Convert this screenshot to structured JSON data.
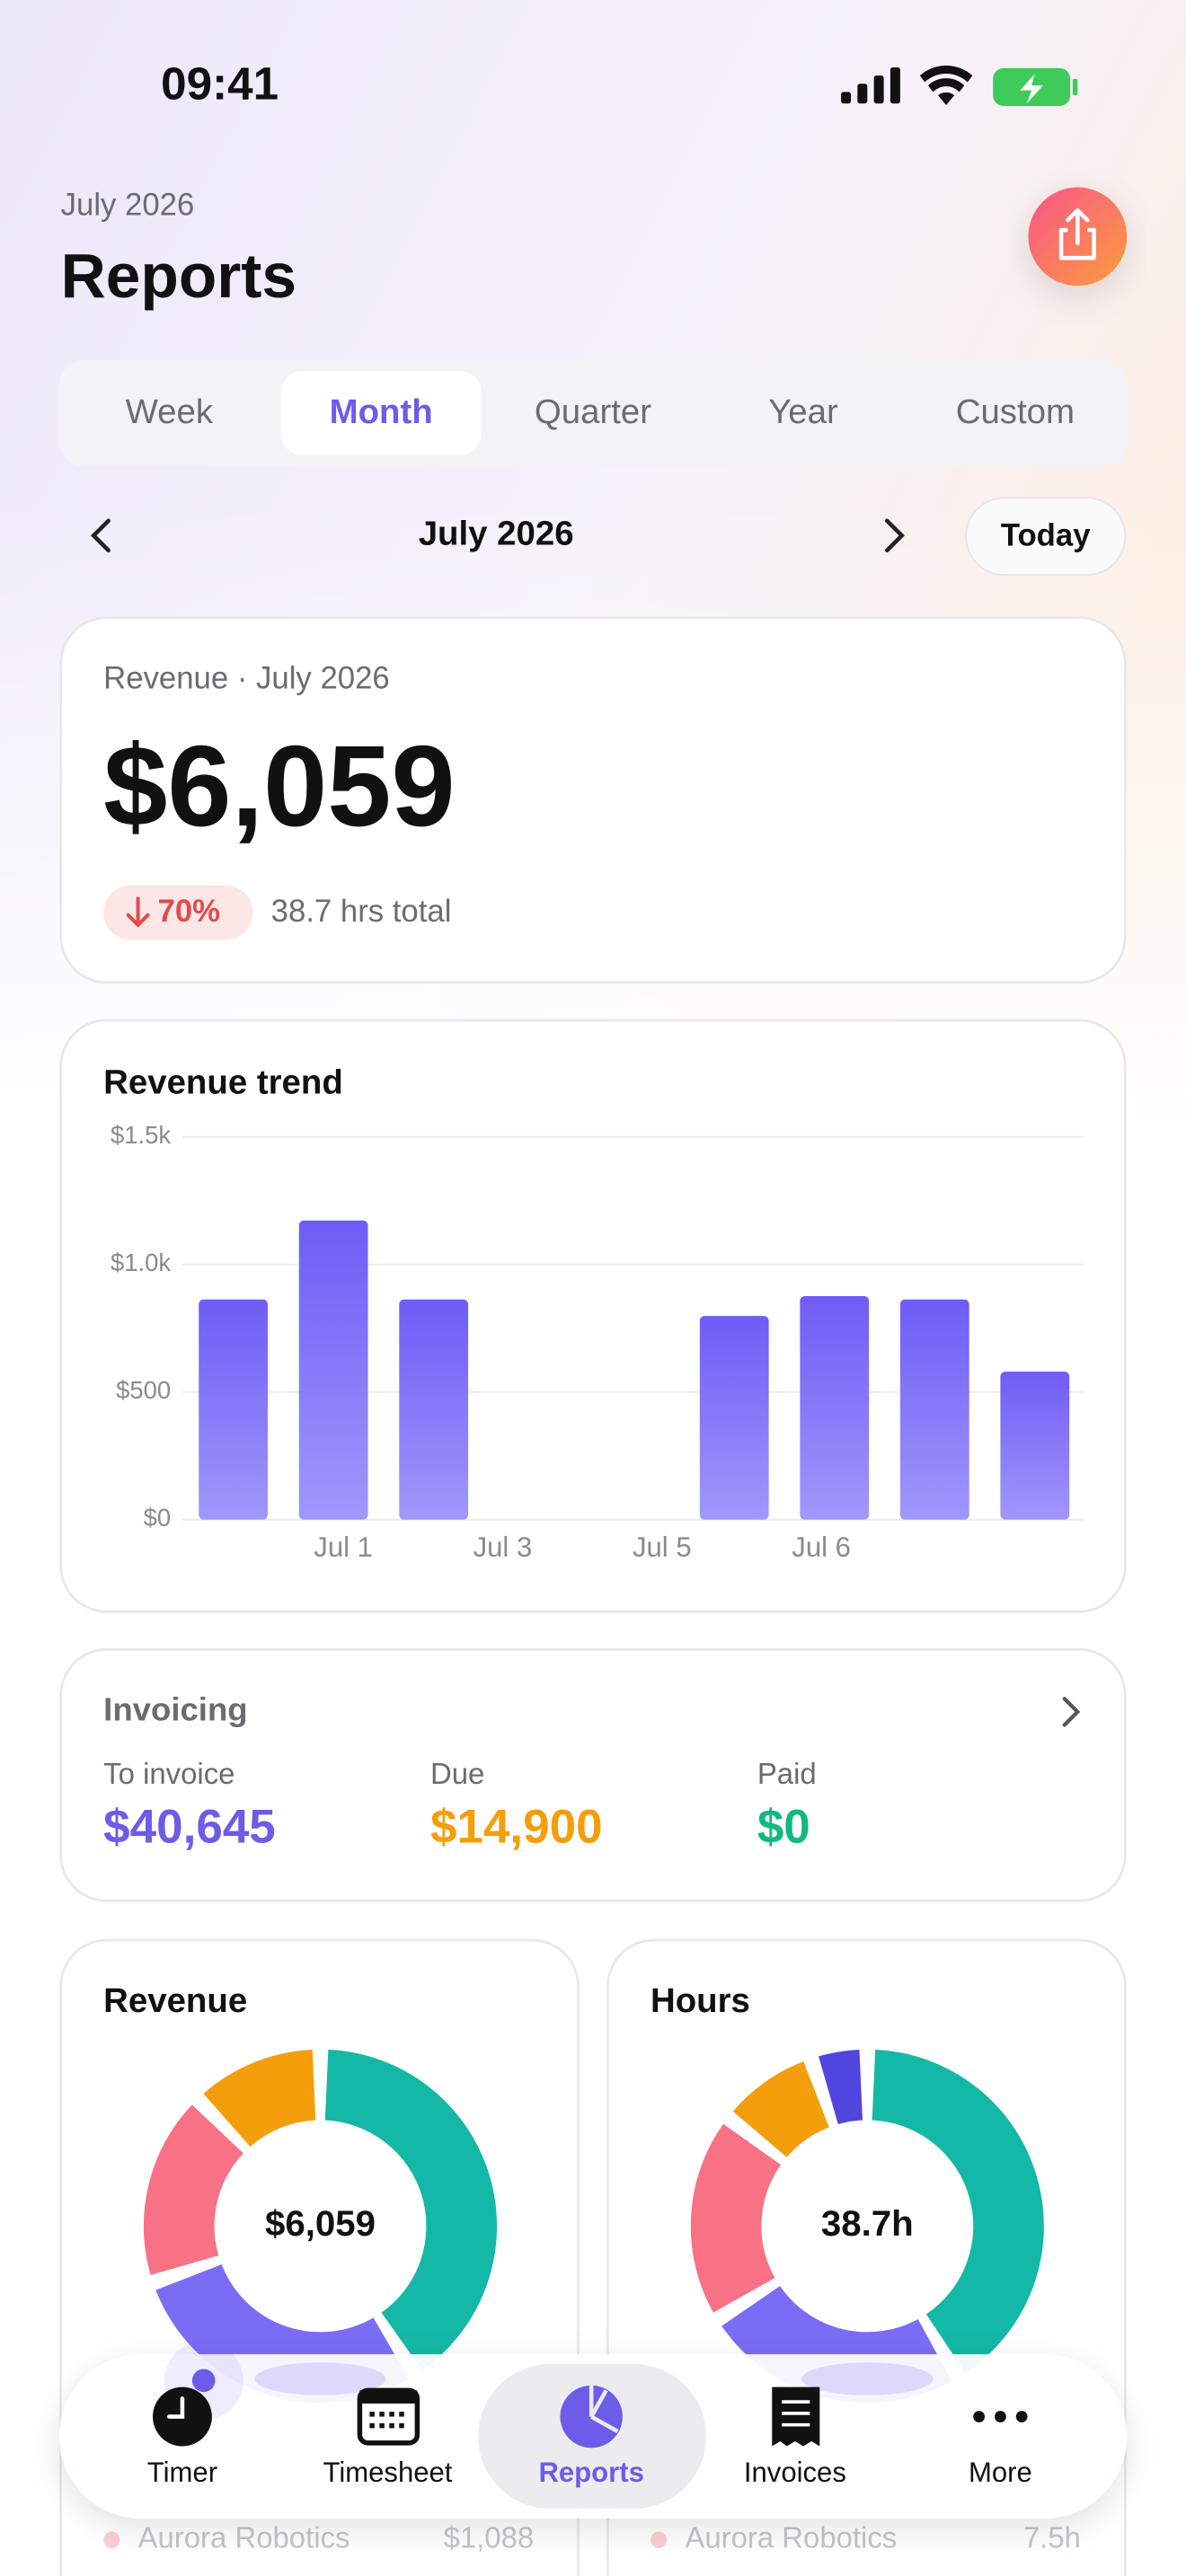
{
  "status": {
    "time": "09:41"
  },
  "header": {
    "subtitle": "July 2026",
    "title": "Reports"
  },
  "tabs": {
    "items": [
      "Week",
      "Month",
      "Quarter",
      "Year",
      "Custom"
    ],
    "active": 1
  },
  "period": {
    "label": "July 2026",
    "today": "Today"
  },
  "summary": {
    "label": "Revenue · July 2026",
    "amount": "$6,059",
    "change": "70%",
    "hours": "38.7 hrs total"
  },
  "revenue_trend": {
    "type": "bar",
    "title": "Revenue trend",
    "categories": [
      null,
      null,
      null,
      null,
      null,
      null,
      null,
      null,
      null
    ],
    "values": [
      863,
      1172,
      863,
      0,
      0,
      798,
      876,
      863,
      580
    ],
    "x_labels": [
      "Jul 1",
      "Jul 3",
      "Jul 5",
      "Jul 6"
    ],
    "color": "#6f5cf6",
    "ylim": [
      0,
      1500
    ],
    "yticks": [
      {
        "value": 0,
        "label": "$0"
      },
      {
        "value": 500,
        "label": "$500"
      },
      {
        "value": 1000,
        "label": "$1.0k"
      },
      {
        "value": 1500,
        "label": "$1.5k"
      }
    ],
    "grid": true
  },
  "invoicing": {
    "title": "Invoicing",
    "items": [
      {
        "label": "To invoice",
        "value": "$40,645",
        "color": "#6c5ce7"
      },
      {
        "label": "Due",
        "value": "$14,900",
        "color": "#f59e0b"
      },
      {
        "label": "Paid",
        "value": "$0",
        "color": "#10b981"
      }
    ]
  },
  "donuts": [
    {
      "type": "pie",
      "title": "Revenue",
      "center": "$6,059",
      "values": [
        2480,
        1750,
        1088,
        741
      ],
      "colors": [
        "#14b8a6",
        "#7b6cf6",
        "#f87185",
        "#f59e0b"
      ],
      "legend": {
        "name": "Aurora Robotics",
        "value": "$1,088"
      }
    },
    {
      "type": "pie",
      "title": "Hours",
      "center": "38.7h",
      "values": [
        16,
        9.6,
        7.5,
        3.6,
        2.0
      ],
      "colors": [
        "#14b8a6",
        "#7b6cf6",
        "#f87185",
        "#f59e0b",
        "#5145e0"
      ],
      "legend": {
        "name": "Aurora Robotics",
        "value": "7.5h"
      }
    }
  ],
  "nav": {
    "items": [
      "Timer",
      "Timesheet",
      "Reports",
      "Invoices",
      "More"
    ],
    "active": 2
  }
}
